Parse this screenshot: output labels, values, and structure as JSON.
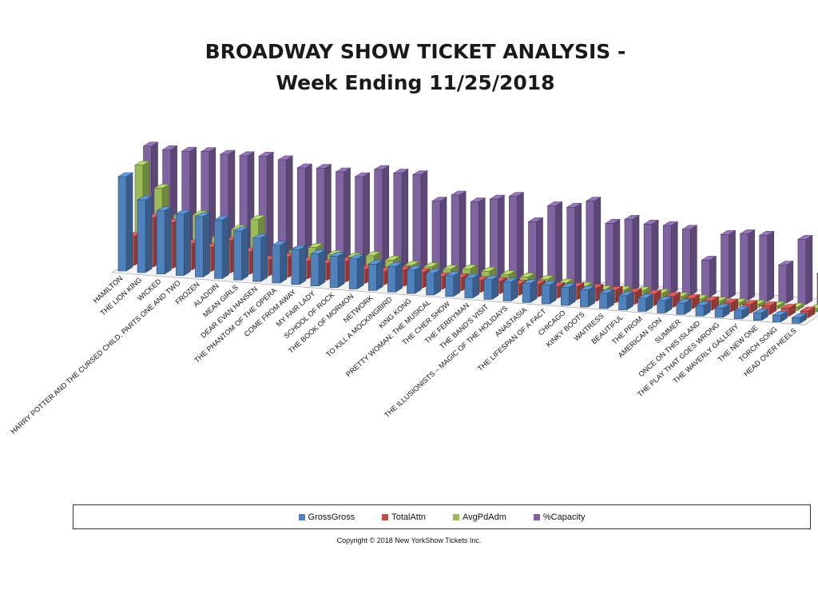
{
  "page": {
    "title_line1": "BROADWAY  SHOW TICKET ANALYSIS -",
    "title_line2": "Week Ending 11/25/2018"
  },
  "legend": {
    "items": [
      {
        "label": "GrossGross",
        "color": "#4f81bd"
      },
      {
        "label": "TotalAttn",
        "color": "#c0504d"
      },
      {
        "label": "AvgPdAdm",
        "color": "#9bbb59"
      },
      {
        "label": "%Capacity",
        "color": "#8064a2"
      }
    ]
  },
  "copyright": "Copyright © 2018 New YorkShow Tickets Inc.",
  "chart_data": {
    "type": "bar",
    "title": "BROADWAY  SHOW TICKET ANALYSIS - Week Ending 11/25/2018",
    "categories": [
      "HAMILTON",
      "THE LION KING",
      "WICKED",
      "HARRY POTTER AND THE CURSED CHILD, PARTS ONE AND TWO",
      "FROZEN",
      "ALADDIN",
      "MEAN GIRLS",
      "DEAR EVAN HANSEN",
      "THE PHANTOM OF THE OPERA",
      "COME FROM AWAY",
      "MY FAIR LADY",
      "SCHOOL OF ROCK",
      "THE BOOK OF MORMON",
      "NETWORK",
      "TO KILL A MOCKINGBIRD",
      "KING KONG",
      "PRETTY WOMAN: THE MUSICAL",
      "THE CHER SHOW",
      "THE FERRYMAN",
      "THE BAND'S VISIT",
      "THE ILLUSIONISTS – MAGIC OF THE HOLIDAYS",
      "ANASTASIA",
      "THE LIFESPAN OF A FACT",
      "CHICAGO",
      "KINKY BOOTS",
      "WAITRESS",
      "BEAUTIFUL",
      "THE PROM",
      "AMERICAN SON",
      "SUMMER",
      "ONCE ON THIS ISLAND",
      "THE PLAY THAT GOES WRONG",
      "THE WAVERLY GALLERY",
      "THE NEW ONE",
      "TORCH SONG",
      "HEAD OVER HEELS"
    ],
    "series": [
      {
        "name": "GrossGross",
        "color": "#4f81bd",
        "values": [
          100,
          77,
          67,
          65,
          64,
          62,
          52,
          46,
          40,
          37,
          34,
          33,
          32,
          28,
          27,
          25,
          23,
          22,
          21,
          21,
          20,
          20,
          20,
          19,
          18,
          16,
          15,
          14,
          13,
          12,
          11,
          10,
          9,
          8,
          7,
          6
        ]
      },
      {
        "name": "TotalAttn",
        "color": "#c0504d",
        "values": [
          40,
          68,
          63,
          36,
          33,
          44,
          31,
          22,
          28,
          24,
          23,
          28,
          19,
          18,
          22,
          21,
          17,
          18,
          16,
          17,
          15,
          17,
          16,
          18,
          18,
          17,
          16,
          16,
          15,
          14,
          13,
          12,
          12,
          12,
          11,
          9
        ]
      },
      {
        "name": "AvgPdAdm",
        "color": "#9bbb59",
        "values": [
          100,
          77,
          50,
          52,
          30,
          40,
          52,
          14,
          22,
          27,
          21,
          20,
          23,
          20,
          16,
          16,
          15,
          17,
          16,
          14,
          13,
          12,
          10,
          8,
          6,
          7,
          8,
          7,
          5,
          4,
          3,
          2,
          3,
          2,
          2,
          2
        ]
      },
      {
        "name": "%Capacity",
        "color": "#8064a2",
        "values": [
          99,
          97,
          97,
          98,
          97,
          97,
          98,
          96,
          90,
          91,
          89,
          86,
          94,
          92,
          92,
          69,
          76,
          71,
          75,
          79,
          57,
          73,
          73,
          80,
          61,
          66,
          63,
          63,
          61,
          34,
          59,
          61,
          61,
          35,
          60,
          30
        ]
      }
    ]
  }
}
